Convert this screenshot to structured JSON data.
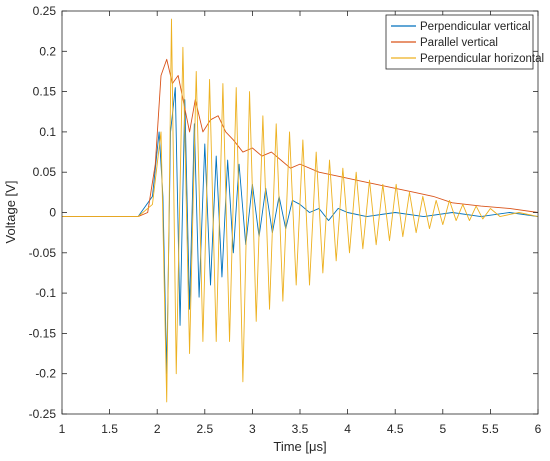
{
  "chart_data": {
    "type": "line",
    "title": "",
    "xlabel": "Time [μs]",
    "ylabel": "Voltage [V]",
    "xlim": [
      1,
      6
    ],
    "ylim": [
      -0.25,
      0.25
    ],
    "x_ticks": [
      1,
      1.5,
      2,
      2.5,
      3,
      3.5,
      4,
      4.5,
      5,
      5.5,
      6
    ],
    "x_tick_labels": [
      "1",
      "1.5",
      "2",
      "2.5",
      "3",
      "3.5",
      "4",
      "4.5",
      "5",
      "5.5",
      "6"
    ],
    "y_ticks": [
      -0.25,
      -0.2,
      -0.15,
      -0.1,
      -0.05,
      0,
      0.05,
      0.1,
      0.15,
      0.2,
      0.25
    ],
    "y_tick_labels": [
      "-0.25",
      "-0.2",
      "-0.15",
      "-0.1",
      "-0.05",
      "0",
      "0.05",
      "0.1",
      "0.15",
      "0.2",
      "0.25"
    ],
    "grid": false,
    "legend_position": "top-right",
    "series": [
      {
        "name": "Perpendicular vertical",
        "color": "#0072BD",
        "x": [
          1.0,
          1.8,
          1.95,
          2.02,
          2.06,
          2.1,
          2.14,
          2.19,
          2.24,
          2.29,
          2.34,
          2.39,
          2.44,
          2.5,
          2.56,
          2.62,
          2.68,
          2.74,
          2.8,
          2.86,
          2.93,
          3.0,
          3.07,
          3.14,
          3.21,
          3.28,
          3.35,
          3.42,
          3.5,
          3.6,
          3.7,
          3.8,
          3.9,
          4.0,
          4.2,
          4.5,
          4.8,
          5.1,
          5.4,
          5.7,
          6.0
        ],
        "y": [
          -0.005,
          -0.005,
          0.02,
          0.1,
          0.02,
          -0.2,
          0.1,
          0.155,
          -0.14,
          0.14,
          -0.12,
          0.11,
          -0.105,
          0.085,
          -0.09,
          0.07,
          -0.08,
          0.065,
          -0.05,
          0.06,
          -0.04,
          0.035,
          -0.03,
          0.03,
          -0.025,
          0.02,
          -0.02,
          0.015,
          0.01,
          0.0,
          0.005,
          -0.01,
          0.005,
          0.0,
          -0.005,
          0.0,
          -0.005,
          0.0,
          -0.005,
          0.0,
          -0.005
        ]
      },
      {
        "name": "Parallel vertical",
        "color": "#D95319",
        "x": [
          1.0,
          1.8,
          1.9,
          1.98,
          2.04,
          2.1,
          2.16,
          2.22,
          2.28,
          2.34,
          2.4,
          2.48,
          2.56,
          2.64,
          2.72,
          2.8,
          2.9,
          3.0,
          3.1,
          3.2,
          3.3,
          3.4,
          3.5,
          3.7,
          3.9,
          4.1,
          4.3,
          4.5,
          4.7,
          4.9,
          5.1,
          5.4,
          5.7,
          6.0
        ],
        "y": [
          -0.005,
          -0.005,
          0.0,
          0.06,
          0.17,
          0.19,
          0.16,
          0.17,
          0.135,
          0.1,
          0.14,
          0.1,
          0.115,
          0.12,
          0.1,
          0.09,
          0.075,
          0.08,
          0.07,
          0.075,
          0.065,
          0.055,
          0.06,
          0.05,
          0.045,
          0.04,
          0.035,
          0.03,
          0.025,
          0.02,
          0.012,
          0.008,
          0.005,
          0.0
        ]
      },
      {
        "name": "Perpendicular horizontal",
        "color": "#EDB120",
        "x": [
          1.0,
          1.8,
          1.95,
          2.04,
          2.1,
          2.15,
          2.2,
          2.27,
          2.34,
          2.41,
          2.48,
          2.55,
          2.62,
          2.69,
          2.76,
          2.83,
          2.9,
          2.97,
          3.04,
          3.11,
          3.18,
          3.25,
          3.32,
          3.39,
          3.46,
          3.53,
          3.6,
          3.67,
          3.74,
          3.81,
          3.88,
          3.95,
          4.02,
          4.09,
          4.16,
          4.23,
          4.3,
          4.37,
          4.44,
          4.51,
          4.58,
          4.65,
          4.72,
          4.79,
          4.86,
          4.93,
          5.0,
          5.07,
          5.14,
          5.21,
          5.28,
          5.35,
          5.42,
          5.5,
          5.6,
          5.8,
          6.0
        ],
        "y": [
          -0.005,
          -0.005,
          0.01,
          0.1,
          -0.235,
          0.24,
          -0.2,
          0.205,
          -0.175,
          0.175,
          -0.16,
          0.165,
          -0.16,
          0.16,
          -0.16,
          0.155,
          -0.21,
          0.15,
          -0.135,
          0.12,
          -0.12,
          0.11,
          -0.11,
          0.1,
          -0.09,
          0.09,
          -0.09,
          0.075,
          -0.075,
          0.065,
          -0.06,
          0.055,
          -0.05,
          0.05,
          -0.045,
          0.04,
          -0.04,
          0.035,
          -0.035,
          0.035,
          -0.03,
          0.025,
          -0.025,
          0.02,
          -0.02,
          0.015,
          -0.015,
          0.015,
          -0.01,
          0.01,
          -0.01,
          0.008,
          -0.008,
          0.005,
          -0.005,
          0.0,
          -0.005
        ]
      }
    ]
  }
}
